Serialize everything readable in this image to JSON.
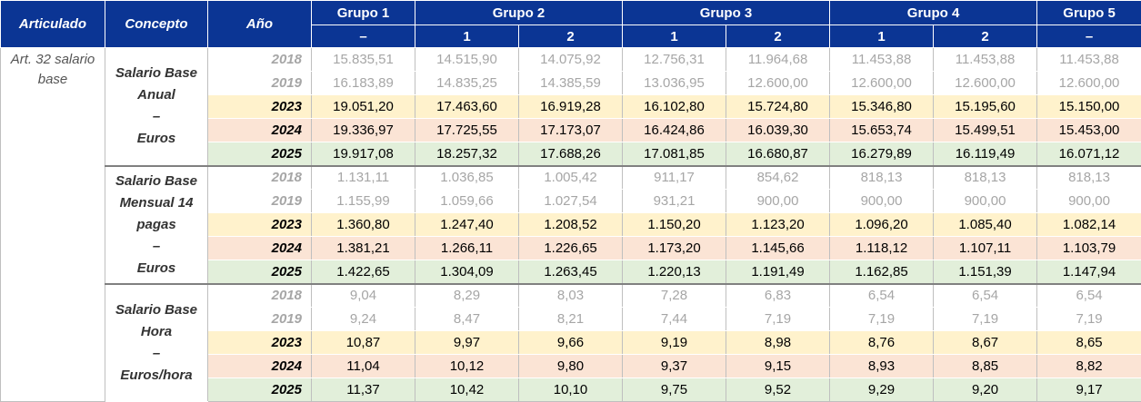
{
  "header": {
    "articulado": "Articulado",
    "concepto": "Concepto",
    "anio": "Año",
    "groups": [
      {
        "label": "Grupo 1",
        "subs": [
          "–"
        ]
      },
      {
        "label": "Grupo 2",
        "subs": [
          "1",
          "2"
        ]
      },
      {
        "label": "Grupo 3",
        "subs": [
          "1",
          "2"
        ]
      },
      {
        "label": "Grupo 4",
        "subs": [
          "1",
          "2"
        ]
      },
      {
        "label": "Grupo 5",
        "subs": [
          "–"
        ]
      }
    ]
  },
  "articulado": "Art. 32 salario base",
  "blocks": [
    {
      "concept_lines": [
        "Salario Base",
        "Anual",
        "–",
        "Euros"
      ],
      "rows": [
        {
          "year": "2018",
          "values": [
            "15.835,51",
            "14.515,90",
            "14.075,92",
            "12.756,31",
            "11.964,68",
            "11.453,88",
            "11.453,88",
            "11.453,88"
          ]
        },
        {
          "year": "2019",
          "values": [
            "16.183,89",
            "14.835,25",
            "14.385,59",
            "13.036,95",
            "12.600,00",
            "12.600,00",
            "12.600,00",
            "12.600,00"
          ]
        },
        {
          "year": "2023",
          "values": [
            "19.051,20",
            "17.463,60",
            "16.919,28",
            "16.102,80",
            "15.724,80",
            "15.346,80",
            "15.195,60",
            "15.150,00"
          ]
        },
        {
          "year": "2024",
          "values": [
            "19.336,97",
            "17.725,55",
            "17.173,07",
            "16.424,86",
            "16.039,30",
            "15.653,74",
            "15.499,51",
            "15.453,00"
          ]
        },
        {
          "year": "2025",
          "values": [
            "19.917,08",
            "18.257,32",
            "17.688,26",
            "17.081,85",
            "16.680,87",
            "16.279,89",
            "16.119,49",
            "16.071,12"
          ]
        }
      ]
    },
    {
      "concept_lines": [
        "Salario Base",
        "Mensual 14",
        "pagas",
        "–",
        "Euros"
      ],
      "rows": [
        {
          "year": "2018",
          "values": [
            "1.131,11",
            "1.036,85",
            "1.005,42",
            "911,17",
            "854,62",
            "818,13",
            "818,13",
            "818,13"
          ]
        },
        {
          "year": "2019",
          "values": [
            "1.155,99",
            "1.059,66",
            "1.027,54",
            "931,21",
            "900,00",
            "900,00",
            "900,00",
            "900,00"
          ]
        },
        {
          "year": "2023",
          "values": [
            "1.360,80",
            "1.247,40",
            "1.208,52",
            "1.150,20",
            "1.123,20",
            "1.096,20",
            "1.085,40",
            "1.082,14"
          ]
        },
        {
          "year": "2024",
          "values": [
            "1.381,21",
            "1.266,11",
            "1.226,65",
            "1.173,20",
            "1.145,66",
            "1.118,12",
            "1.107,11",
            "1.103,79"
          ]
        },
        {
          "year": "2025",
          "values": [
            "1.422,65",
            "1.304,09",
            "1.263,45",
            "1.220,13",
            "1.191,49",
            "1.162,85",
            "1.151,39",
            "1.147,94"
          ]
        }
      ]
    },
    {
      "concept_lines": [
        "Salario Base",
        "Hora",
        "–",
        "Euros/hora"
      ],
      "rows": [
        {
          "year": "2018",
          "values": [
            "9,04",
            "8,29",
            "8,03",
            "7,28",
            "6,83",
            "6,54",
            "6,54",
            "6,54"
          ]
        },
        {
          "year": "2019",
          "values": [
            "9,24",
            "8,47",
            "8,21",
            "7,44",
            "7,19",
            "7,19",
            "7,19",
            "7,19"
          ]
        },
        {
          "year": "2023",
          "values": [
            "10,87",
            "9,97",
            "9,66",
            "9,19",
            "8,98",
            "8,76",
            "8,67",
            "8,65"
          ]
        },
        {
          "year": "2024",
          "values": [
            "11,04",
            "10,12",
            "9,80",
            "9,37",
            "9,15",
            "8,93",
            "8,85",
            "8,82"
          ]
        },
        {
          "year": "2025",
          "values": [
            "11,37",
            "10,42",
            "10,10",
            "9,75",
            "9,52",
            "9,29",
            "9,20",
            "9,17"
          ]
        }
      ]
    }
  ],
  "colors": {
    "header_bg": "#0b3594",
    "row_2023": "#fff2cc",
    "row_2024": "#fbe4d5",
    "row_2025": "#e2efda",
    "historic_text": "#a6a6a6"
  }
}
